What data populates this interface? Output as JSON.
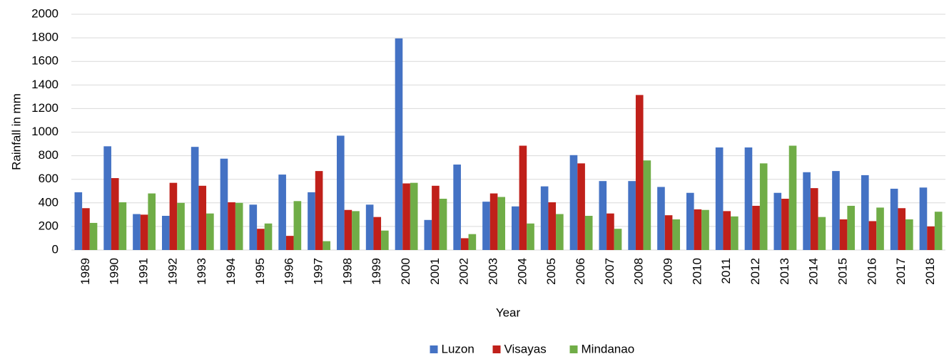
{
  "chart_data": {
    "type": "bar",
    "xlabel": "Year",
    "ylabel": "Rainfall in mm",
    "categories": [
      "1989",
      "1990",
      "1991",
      "1992",
      "1993",
      "1994",
      "1995",
      "1996",
      "1997",
      "1998",
      "1999",
      "2000",
      "2001",
      "2002",
      "2003",
      "2004",
      "2005",
      "2006",
      "2007",
      "2008",
      "2009",
      "2010",
      "2011",
      "2012",
      "2013",
      "2014",
      "2015",
      "2016",
      "2017",
      "2018"
    ],
    "series": [
      {
        "name": "Luzon",
        "color": "#4472c4",
        "values": [
          490,
          880,
          305,
          290,
          875,
          775,
          385,
          640,
          490,
          970,
          385,
          1795,
          255,
          725,
          410,
          370,
          540,
          805,
          585,
          585,
          535,
          485,
          870,
          870,
          485,
          660,
          670,
          635,
          520,
          530
        ]
      },
      {
        "name": "Visayas",
        "color": "#c0201a",
        "values": [
          355,
          610,
          300,
          570,
          545,
          405,
          180,
          120,
          670,
          340,
          280,
          565,
          545,
          100,
          480,
          885,
          405,
          735,
          310,
          1315,
          295,
          345,
          330,
          375,
          435,
          525,
          260,
          245,
          355,
          200
        ]
      },
      {
        "name": "Mindanao",
        "color": "#70ad47",
        "values": [
          230,
          405,
          480,
          400,
          310,
          400,
          225,
          415,
          75,
          330,
          165,
          570,
          435,
          135,
          450,
          225,
          305,
          290,
          180,
          760,
          260,
          340,
          285,
          735,
          885,
          280,
          375,
          360,
          260,
          325
        ]
      }
    ],
    "ylim": [
      0,
      2000
    ],
    "yticks": [
      0,
      200,
      400,
      600,
      800,
      1000,
      1200,
      1400,
      1600,
      1800,
      2000
    ],
    "grid": true,
    "legend": "bottom"
  }
}
